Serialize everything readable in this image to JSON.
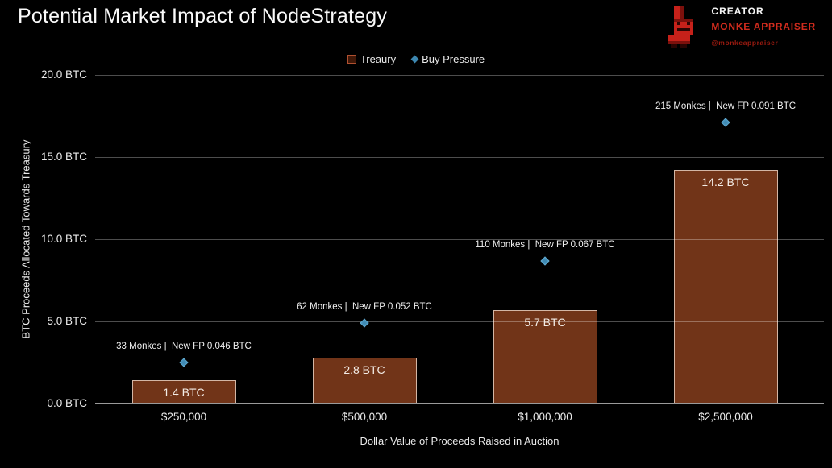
{
  "title": "Potential Market Impact of NodeStrategy",
  "creator": {
    "label": "CREATOR",
    "name": "MONKE APPRAISER",
    "handle": "@monkeappraiser",
    "accent_color": "#cf2b1d"
  },
  "chart_data": {
    "type": "bar",
    "title": "Potential Market Impact of NodeStrategy",
    "xlabel": "Dollar Value of Proceeds Raised in Auction",
    "ylabel": "BTC Proceeds Allocated Towards Treasury",
    "categories": [
      "$250,000",
      "$500,000",
      "$1,000,000",
      "$2,500,000"
    ],
    "series": [
      {
        "name": "Treaury",
        "type": "bar",
        "values": [
          1.4,
          2.8,
          5.7,
          14.2
        ],
        "data_labels": [
          "1.4 BTC",
          "2.8 BTC",
          "5.7 BTC",
          "14.2 BTC"
        ],
        "fill_color": "#713418",
        "border_color": "#e4cebe"
      },
      {
        "name": "Buy Pressure",
        "type": "scatter",
        "marker": "diamond",
        "values": [
          2.5,
          4.9,
          8.7,
          17.1
        ],
        "annotations": [
          "33 Monkes |  New FP 0.046 BTC",
          "62 Monkes |  New FP 0.052 BTC",
          "110 Monkes |  New FP 0.067 BTC",
          "215 Monkes |  New FP 0.091 BTC"
        ],
        "marker_color": "#3d87b0"
      }
    ],
    "yticks": [
      {
        "value": 0,
        "label": "0.0 BTC"
      },
      {
        "value": 5,
        "label": "5.0 BTC"
      },
      {
        "value": 10,
        "label": "10.0 BTC"
      },
      {
        "value": 15,
        "label": "15.0 BTC"
      },
      {
        "value": 20,
        "label": "20.0 BTC"
      }
    ],
    "ylim": [
      0,
      20
    ],
    "grid": true,
    "legend_position": "top-center",
    "background": "#000000"
  }
}
